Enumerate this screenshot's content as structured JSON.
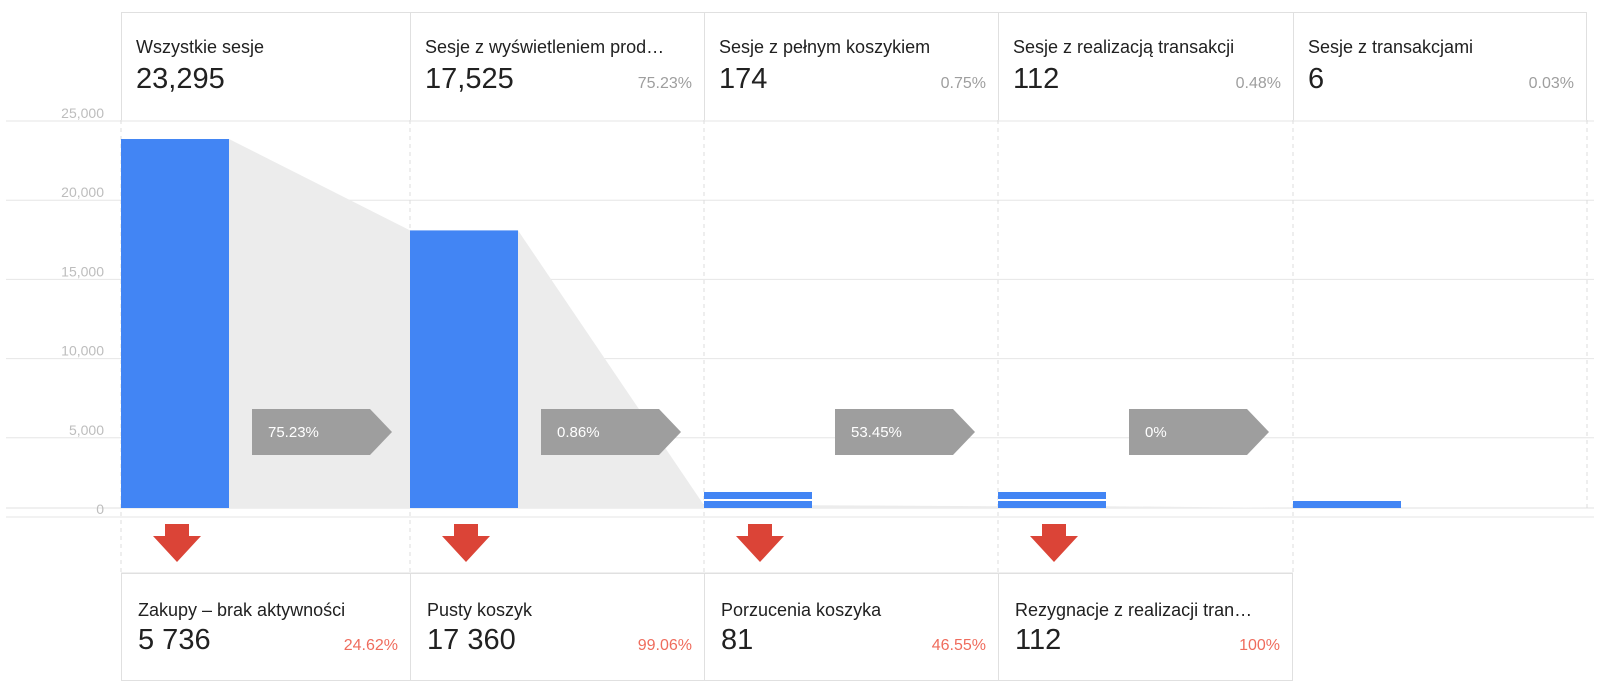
{
  "chart_data": {
    "type": "bar",
    "categories": [
      "Wszystkie sesje",
      "Sesje z wyświetleniem prod…",
      "Sesje z pełnym koszykiem",
      "Sesje z realizacją transakcji",
      "Sesje z transakcjami"
    ],
    "values": [
      23295,
      17525,
      174,
      112,
      6
    ],
    "ylim": [
      0,
      25000
    ],
    "yticks": [
      0,
      5000,
      10000,
      15000,
      20000,
      25000
    ],
    "ytick_labels": [
      "0",
      "5,000",
      "10,000",
      "15,000",
      "20,000",
      "25,000"
    ],
    "grid": true,
    "colors": {
      "bar": "#4285f4",
      "flow": "#ececec",
      "conversion": "#9e9e9e",
      "drop_arrow": "#db4437",
      "grid": "#e6e6e6"
    }
  },
  "stages": [
    {
      "name": "Wszystkie sesje",
      "count": "23,295",
      "pct": ""
    },
    {
      "name": "Sesje z wyświetleniem prod…",
      "count": "17,525",
      "pct": "75.23%"
    },
    {
      "name": "Sesje z pełnym koszykiem",
      "count": "174",
      "pct": "0.75%"
    },
    {
      "name": "Sesje z realizacją transakcji",
      "count": "112",
      "pct": "0.48%"
    },
    {
      "name": "Sesje z transakcjami",
      "count": "6",
      "pct": "0.03%"
    }
  ],
  "conversions": [
    "75.23%",
    "0.86%",
    "53.45%",
    "0%"
  ],
  "dropoffs": [
    {
      "name": "Zakupy – brak aktywności",
      "count": "5 736",
      "pct": "24.62%"
    },
    {
      "name": "Pusty koszyk",
      "count": "17 360",
      "pct": "99.06%"
    },
    {
      "name": "Porzucenia koszyka",
      "count": "81",
      "pct": "46.55%"
    },
    {
      "name": "Rezygnacje z realizacji tran…",
      "count": "112",
      "pct": "100%"
    }
  ]
}
